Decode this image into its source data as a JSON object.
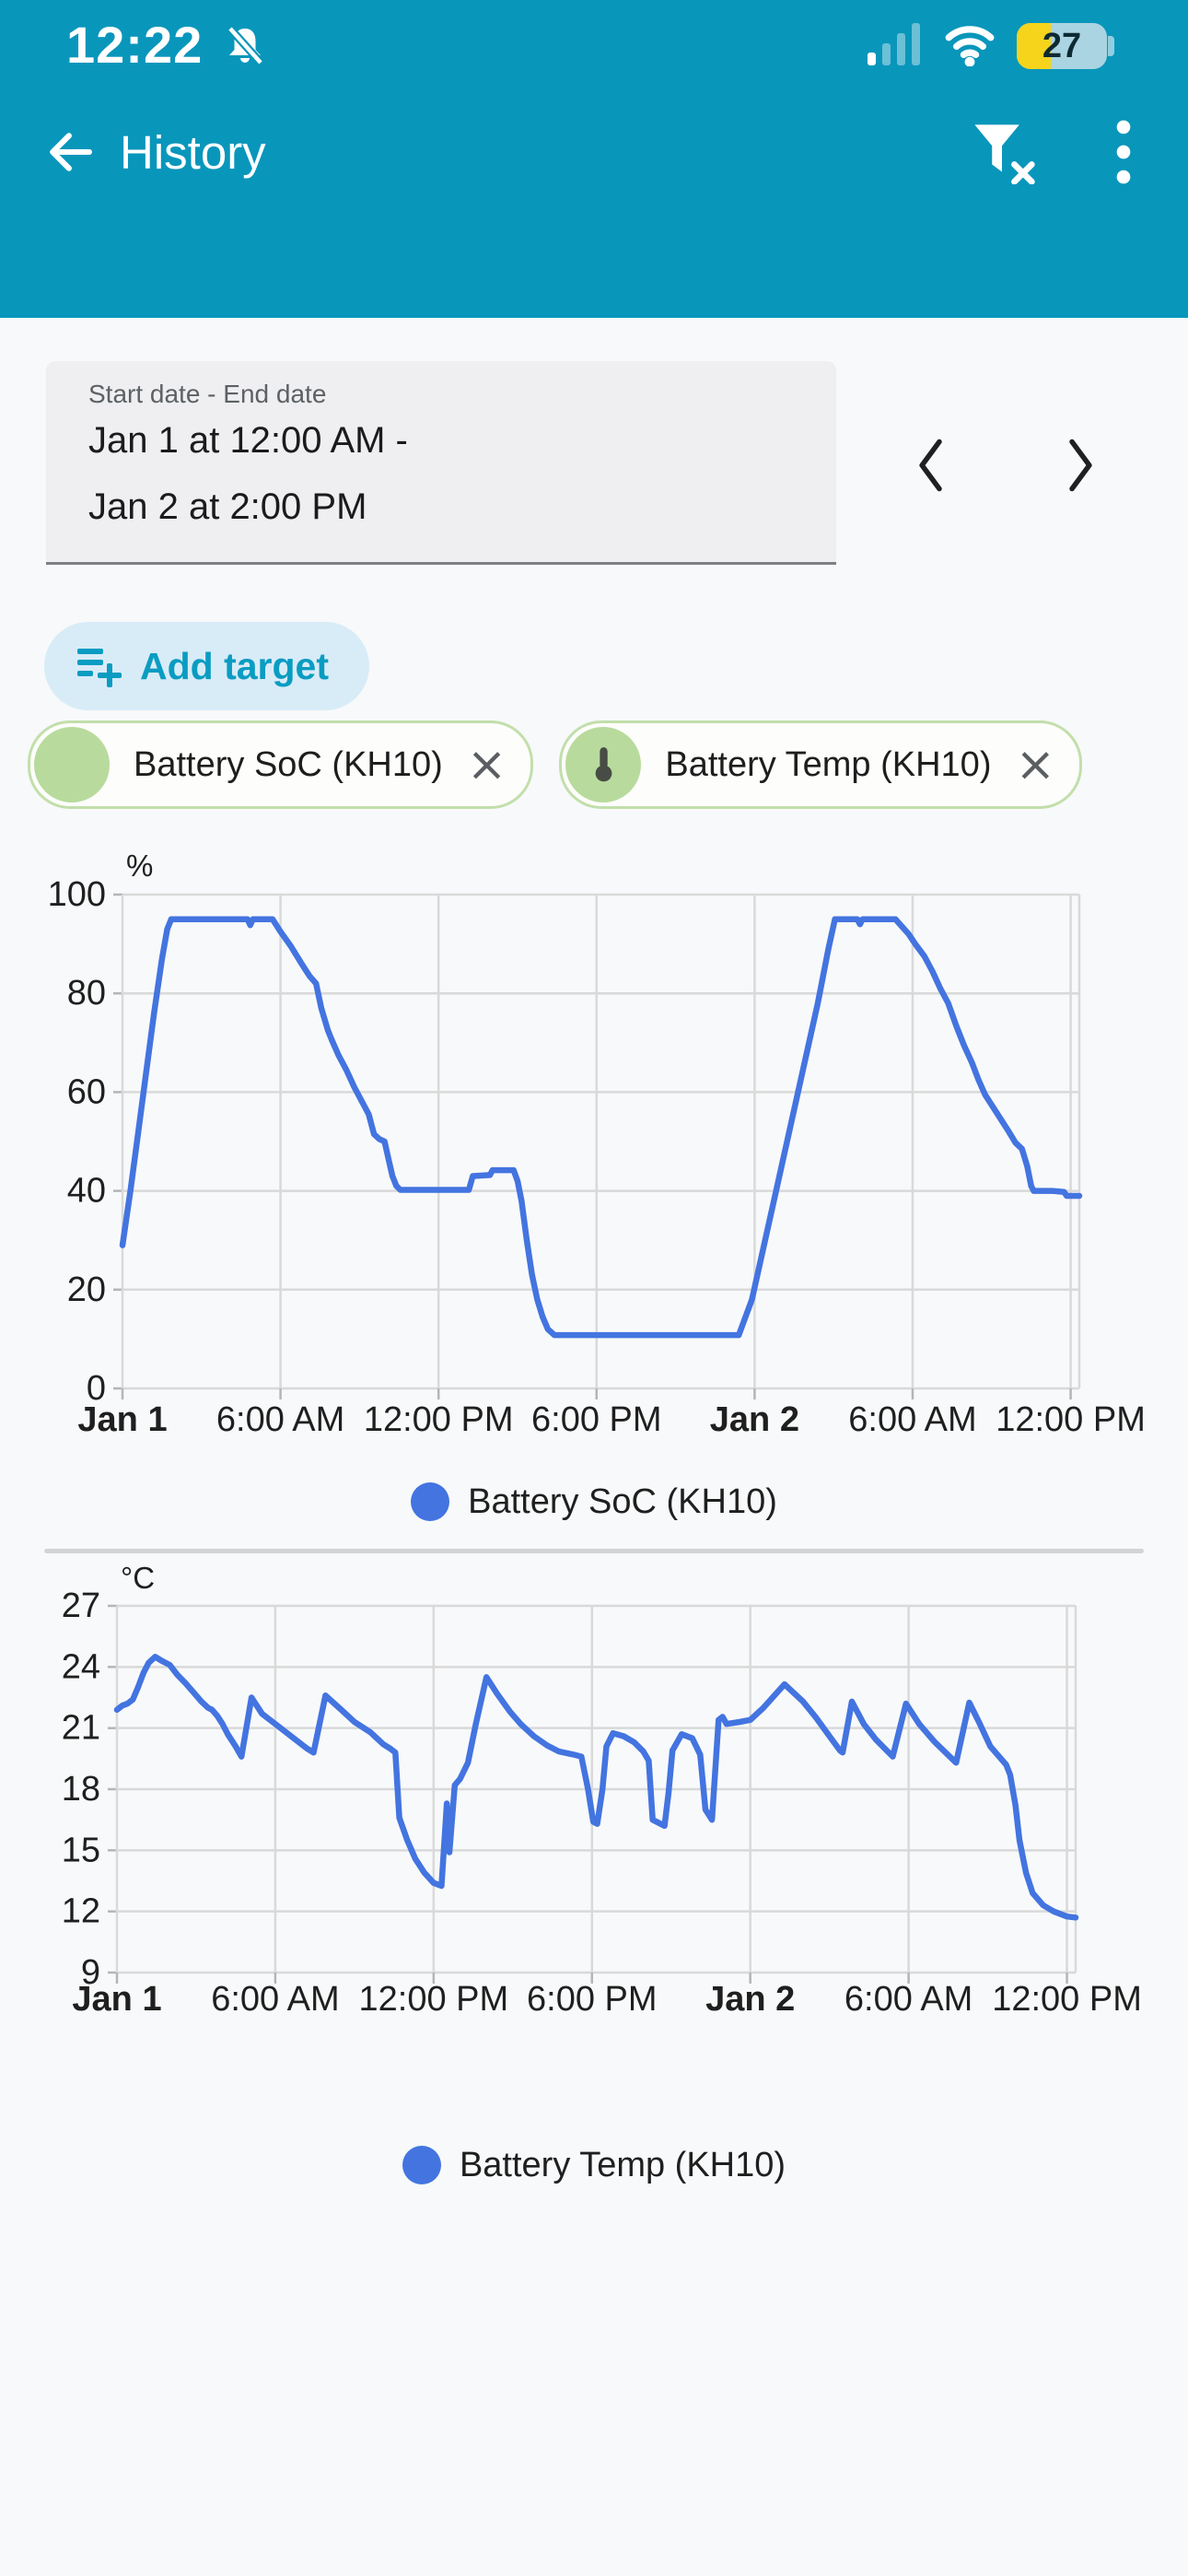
{
  "status_bar": {
    "time": "12:22",
    "battery_percent": "27"
  },
  "app_bar": {
    "title": "History"
  },
  "date_range": {
    "label": "Start date - End date",
    "value_line1": "Jan 1 at 12:00 AM -",
    "value_line2": "Jan 2 at 2:00 PM"
  },
  "add_target": {
    "label": "Add target"
  },
  "chips": [
    {
      "label": "Battery SoC (KH10)",
      "avatar_icon": "plain-green-circle",
      "close_icon": "close-x"
    },
    {
      "label": "Battery Temp (KH10)",
      "avatar_icon": "thermometer",
      "close_icon": "close-x"
    }
  ],
  "icons": {
    "close": "×",
    "back": "arrow-left",
    "filter": "filter-remove",
    "menu": "kebab-vertical",
    "bell": "notifications-off",
    "chevron_left": "chevron-left",
    "chevron_right": "chevron-right",
    "add_target": "playlist-add"
  },
  "colors": {
    "primary_teal": "#0996bb",
    "line_blue": "#4374e0",
    "chip_green": "#b8db9d",
    "chip_border": "#c2dfab",
    "grid_gray": "#d9d9d9",
    "battery_yellow": "#f5d41b"
  },
  "chart_data": [
    {
      "type": "line",
      "title": "Battery SoC (KH10)",
      "legend": "Battery SoC (KH10)",
      "unit_label": "%",
      "ylim": [
        0,
        100
      ],
      "y_ticks": [
        0,
        20,
        40,
        60,
        80,
        100
      ],
      "x_hours_range": [
        0,
        36.33
      ],
      "x_ticks": [
        {
          "t": 0,
          "label": "Jan 1",
          "bold": true
        },
        {
          "t": 6,
          "label": "6:00 AM",
          "bold": false
        },
        {
          "t": 12,
          "label": "12:00 PM",
          "bold": false
        },
        {
          "t": 18,
          "label": "6:00 PM",
          "bold": false
        },
        {
          "t": 24,
          "label": "Jan 2",
          "bold": true
        },
        {
          "t": 30,
          "label": "6:00 AM",
          "bold": false
        },
        {
          "t": 36,
          "label": "12:00 PM",
          "bold": false
        }
      ],
      "line_color": "#4374e0",
      "grid": true,
      "legend_position": "bottom",
      "points": [
        [
          0,
          29
        ],
        [
          0.3,
          40
        ],
        [
          0.6,
          52
        ],
        [
          0.9,
          64
        ],
        [
          1.2,
          76
        ],
        [
          1.5,
          87
        ],
        [
          1.7,
          93
        ],
        [
          1.85,
          95
        ],
        [
          4.75,
          95
        ],
        [
          4.85,
          93.8
        ],
        [
          4.95,
          95
        ],
        [
          5.7,
          95
        ],
        [
          6.0,
          92.5
        ],
        [
          6.4,
          89.5
        ],
        [
          6.8,
          86
        ],
        [
          7.1,
          83.5
        ],
        [
          7.35,
          82
        ],
        [
          7.55,
          77
        ],
        [
          7.8,
          72.5
        ],
        [
          7.95,
          70.5
        ],
        [
          8.2,
          67.5
        ],
        [
          8.5,
          64.5
        ],
        [
          8.8,
          61
        ],
        [
          9.1,
          58
        ],
        [
          9.35,
          55.5
        ],
        [
          9.55,
          51.5
        ],
        [
          9.75,
          50.5
        ],
        [
          9.95,
          50
        ],
        [
          10.1,
          46.5
        ],
        [
          10.25,
          43
        ],
        [
          10.4,
          41
        ],
        [
          10.55,
          40.2
        ],
        [
          13.15,
          40.2
        ],
        [
          13.3,
          43
        ],
        [
          13.95,
          43.2
        ],
        [
          14.05,
          44.2
        ],
        [
          14.85,
          44.2
        ],
        [
          15.0,
          42
        ],
        [
          15.15,
          38
        ],
        [
          15.35,
          30
        ],
        [
          15.55,
          23
        ],
        [
          15.75,
          18
        ],
        [
          15.95,
          14.5
        ],
        [
          16.15,
          12
        ],
        [
          16.4,
          10.8
        ],
        [
          23.4,
          10.8
        ],
        [
          23.9,
          18
        ],
        [
          24.4,
          30
        ],
        [
          24.9,
          42
        ],
        [
          25.4,
          54
        ],
        [
          25.9,
          66
        ],
        [
          26.4,
          78
        ],
        [
          26.8,
          89
        ],
        [
          27.05,
          95
        ],
        [
          27.9,
          95
        ],
        [
          28.0,
          94
        ],
        [
          28.1,
          95
        ],
        [
          29.35,
          95
        ],
        [
          29.6,
          93.5
        ],
        [
          29.85,
          92
        ],
        [
          30.1,
          90
        ],
        [
          30.45,
          87.5
        ],
        [
          30.75,
          84.5
        ],
        [
          31.05,
          81
        ],
        [
          31.35,
          78
        ],
        [
          31.65,
          73.5
        ],
        [
          31.95,
          69.5
        ],
        [
          32.25,
          66
        ],
        [
          32.5,
          62.5
        ],
        [
          32.75,
          59.5
        ],
        [
          33.05,
          57
        ],
        [
          33.35,
          54.5
        ],
        [
          33.65,
          52
        ],
        [
          33.9,
          49.8
        ],
        [
          34.15,
          48.5
        ],
        [
          34.35,
          45
        ],
        [
          34.5,
          41
        ],
        [
          34.6,
          40
        ],
        [
          35.3,
          40
        ],
        [
          35.75,
          39.8
        ],
        [
          35.85,
          39
        ],
        [
          36.33,
          39
        ]
      ]
    },
    {
      "type": "line",
      "title": "Battery Temp (KH10)",
      "legend": "Battery Temp (KH10)",
      "unit_label": "°C",
      "ylim": [
        9,
        27
      ],
      "y_ticks": [
        9,
        12,
        15,
        18,
        21,
        24,
        27
      ],
      "x_hours_range": [
        0,
        36.33
      ],
      "x_ticks": [
        {
          "t": 0,
          "label": "Jan 1",
          "bold": true
        },
        {
          "t": 6,
          "label": "6:00 AM",
          "bold": false
        },
        {
          "t": 12,
          "label": "12:00 PM",
          "bold": false
        },
        {
          "t": 18,
          "label": "6:00 PM",
          "bold": false
        },
        {
          "t": 24,
          "label": "Jan 2",
          "bold": true
        },
        {
          "t": 30,
          "label": "6:00 AM",
          "bold": false
        },
        {
          "t": 36,
          "label": "12:00 PM",
          "bold": false
        }
      ],
      "line_color": "#4374e0",
      "grid": true,
      "legend_position": "bottom",
      "points": [
        [
          0,
          21.9
        ],
        [
          0.2,
          22.1
        ],
        [
          0.4,
          22.2
        ],
        [
          0.6,
          22.4
        ],
        [
          0.8,
          23.0
        ],
        [
          1.0,
          23.7
        ],
        [
          1.2,
          24.2
        ],
        [
          1.45,
          24.5
        ],
        [
          1.7,
          24.3
        ],
        [
          2.0,
          24.1
        ],
        [
          2.3,
          23.6
        ],
        [
          2.6,
          23.2
        ],
        [
          3.0,
          22.6
        ],
        [
          3.2,
          22.3
        ],
        [
          3.45,
          22.0
        ],
        [
          3.6,
          21.9
        ],
        [
          3.8,
          21.6
        ],
        [
          4.0,
          21.2
        ],
        [
          4.2,
          20.7
        ],
        [
          4.5,
          20.1
        ],
        [
          4.72,
          19.6
        ],
        [
          5.1,
          22.5
        ],
        [
          5.5,
          21.7
        ],
        [
          6.0,
          21.2
        ],
        [
          6.4,
          20.8
        ],
        [
          6.75,
          20.45
        ],
        [
          7.2,
          20.0
        ],
        [
          7.45,
          19.8
        ],
        [
          7.9,
          22.6
        ],
        [
          8.5,
          21.9
        ],
        [
          9.0,
          21.3
        ],
        [
          9.6,
          20.8
        ],
        [
          10.1,
          20.2
        ],
        [
          10.35,
          20.0
        ],
        [
          10.55,
          19.8
        ],
        [
          10.7,
          16.6
        ],
        [
          11.0,
          15.5
        ],
        [
          11.3,
          14.6
        ],
        [
          11.65,
          13.9
        ],
        [
          12.0,
          13.4
        ],
        [
          12.3,
          13.25
        ],
        [
          12.5,
          17.3
        ],
        [
          12.6,
          14.9
        ],
        [
          12.8,
          18.2
        ],
        [
          13.0,
          18.5
        ],
        [
          13.3,
          19.3
        ],
        [
          13.6,
          21.2
        ],
        [
          14.0,
          23.5
        ],
        [
          14.4,
          22.7
        ],
        [
          14.9,
          21.8
        ],
        [
          15.3,
          21.2
        ],
        [
          15.8,
          20.6
        ],
        [
          16.3,
          20.15
        ],
        [
          16.75,
          19.85
        ],
        [
          17.3,
          19.7
        ],
        [
          17.6,
          19.6
        ],
        [
          17.85,
          18.0
        ],
        [
          18.05,
          16.4
        ],
        [
          18.2,
          16.3
        ],
        [
          18.4,
          18.0
        ],
        [
          18.55,
          20.1
        ],
        [
          18.8,
          20.75
        ],
        [
          19.2,
          20.6
        ],
        [
          19.6,
          20.3
        ],
        [
          19.95,
          19.85
        ],
        [
          20.15,
          19.4
        ],
        [
          20.3,
          16.5
        ],
        [
          20.75,
          16.2
        ],
        [
          20.9,
          17.8
        ],
        [
          21.05,
          19.9
        ],
        [
          21.4,
          20.7
        ],
        [
          21.8,
          20.5
        ],
        [
          22.1,
          19.7
        ],
        [
          22.3,
          17.0
        ],
        [
          22.55,
          16.5
        ],
        [
          22.8,
          21.4
        ],
        [
          22.95,
          21.55
        ],
        [
          23.1,
          21.2
        ],
        [
          23.6,
          21.3
        ],
        [
          24.0,
          21.4
        ],
        [
          24.5,
          22.0
        ],
        [
          25.3,
          23.15
        ],
        [
          26.0,
          22.3
        ],
        [
          26.5,
          21.5
        ],
        [
          27.0,
          20.6
        ],
        [
          27.4,
          19.9
        ],
        [
          27.5,
          19.8
        ],
        [
          27.85,
          22.3
        ],
        [
          28.3,
          21.2
        ],
        [
          28.75,
          20.45
        ],
        [
          29.4,
          19.6
        ],
        [
          29.9,
          22.2
        ],
        [
          30.4,
          21.2
        ],
        [
          31.0,
          20.3
        ],
        [
          31.8,
          19.3
        ],
        [
          32.3,
          22.25
        ],
        [
          32.7,
          21.2
        ],
        [
          33.1,
          20.1
        ],
        [
          33.7,
          19.2
        ],
        [
          33.85,
          18.7
        ],
        [
          34.05,
          17.2
        ],
        [
          34.2,
          15.5
        ],
        [
          34.45,
          13.9
        ],
        [
          34.7,
          12.9
        ],
        [
          35.1,
          12.3
        ],
        [
          35.5,
          12.0
        ],
        [
          36.0,
          11.75
        ],
        [
          36.33,
          11.7
        ]
      ]
    }
  ]
}
